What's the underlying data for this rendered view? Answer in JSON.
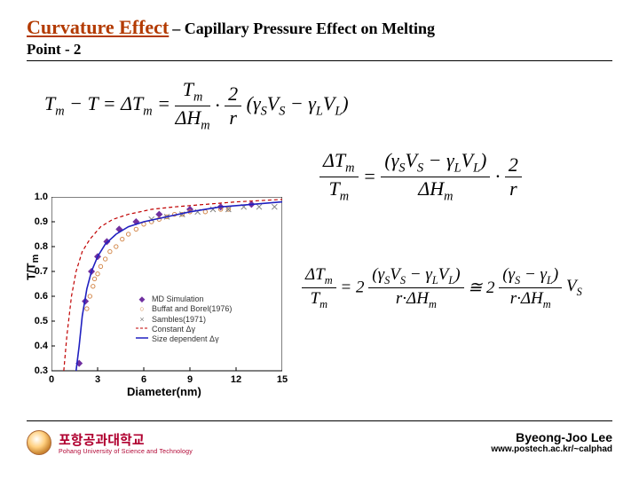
{
  "title": {
    "main": "Curvature Effect",
    "connector": " – ",
    "sub": "Capillary Pressure Effect on Melting",
    "sub2": "Point - 2"
  },
  "equations": {
    "eq1_left": "T",
    "eq1_m": "m",
    "eq1_minusT": " − T = Δ",
    "eq1_Tm2": "T",
    "eq1_eq": " = ",
    "eq1_num": "T",
    "eq1_den_dH": "ΔH",
    "eq1_dot": " · ",
    "eq1_2": "2",
    "eq1_r": "r",
    "eq1_paren_open": "(",
    "eq1_gS": "γ",
    "eq1_S": "S",
    "eq1_VS": "V",
    "eq1_minus": " − ",
    "eq1_gL": "γ",
    "eq1_L": "L",
    "eq1_VL": "V",
    "eq1_paren_close": ")",
    "eq2_lhs_num": "ΔT",
    "eq2_lhs_den": "T",
    "eq2_rhs1_num_open": "(",
    "eq2_rhs1_num_close": ")",
    "eq2_rhs1_den": "ΔH",
    "eq3_prefix": "= 2",
    "eq3_approx": " ≅ 2",
    "eq3_rden": "r·ΔH"
  },
  "chart": {
    "type": "scatter+line",
    "xlabel": "Diameter(nm)",
    "ylabel": "T/Tₘ",
    "xlim": [
      0,
      15
    ],
    "ylim": [
      0.3,
      1.0
    ],
    "xticks": [
      0,
      3,
      6,
      9,
      12,
      15
    ],
    "yticks": [
      0.3,
      0.4,
      0.5,
      0.6,
      0.7,
      0.8,
      0.9,
      1.0
    ],
    "ytick_labels": [
      "0.3",
      "0.4",
      "0.5",
      "0.6",
      "0.7",
      "0.8",
      "0.9",
      "1.0"
    ],
    "background_color": "#ffffff",
    "axis_color": "#000000",
    "series": [
      {
        "name": "MD Simulation",
        "type": "marker",
        "marker": "diamond",
        "color": "#7030a0",
        "points": [
          [
            1.8,
            0.33
          ],
          [
            2.2,
            0.58
          ],
          [
            2.6,
            0.7
          ],
          [
            3.0,
            0.76
          ],
          [
            3.6,
            0.82
          ],
          [
            4.4,
            0.87
          ],
          [
            5.5,
            0.9
          ],
          [
            7.0,
            0.93
          ],
          [
            9.0,
            0.95
          ],
          [
            11.0,
            0.96
          ],
          [
            13.0,
            0.97
          ]
        ]
      },
      {
        "name": "Buffat and Borel(1976)",
        "type": "marker",
        "marker": "open-circle",
        "color": "#d08040",
        "points": [
          [
            2.3,
            0.55
          ],
          [
            2.5,
            0.6
          ],
          [
            2.7,
            0.64
          ],
          [
            2.8,
            0.67
          ],
          [
            3.0,
            0.69
          ],
          [
            3.2,
            0.72
          ],
          [
            3.5,
            0.75
          ],
          [
            3.8,
            0.78
          ],
          [
            4.2,
            0.8
          ],
          [
            4.6,
            0.83
          ],
          [
            5.0,
            0.85
          ],
          [
            5.5,
            0.87
          ],
          [
            6.0,
            0.89
          ],
          [
            6.5,
            0.9
          ],
          [
            7.0,
            0.91
          ],
          [
            7.5,
            0.92
          ],
          [
            8.0,
            0.93
          ],
          [
            8.5,
            0.93
          ],
          [
            9.0,
            0.94
          ],
          [
            10.0,
            0.94
          ],
          [
            11.0,
            0.95
          ],
          [
            11.5,
            0.95
          ]
        ]
      },
      {
        "name": "Sambles(1971)",
        "type": "marker",
        "marker": "x",
        "color": "#808080",
        "points": [
          [
            6.5,
            0.91
          ],
          [
            7.5,
            0.92
          ],
          [
            8.5,
            0.93
          ],
          [
            9.5,
            0.94
          ],
          [
            10.5,
            0.95
          ],
          [
            11.5,
            0.95
          ],
          [
            12.5,
            0.96
          ],
          [
            13.5,
            0.96
          ],
          [
            14.5,
            0.96
          ]
        ]
      },
      {
        "name": "Constant Δγ",
        "type": "line",
        "dash": "4 3",
        "color": "#c00000",
        "width": 1.2,
        "points": [
          [
            0.8,
            0.3
          ],
          [
            1.0,
            0.44
          ],
          [
            1.3,
            0.6
          ],
          [
            1.6,
            0.7
          ],
          [
            2.0,
            0.78
          ],
          [
            2.5,
            0.83
          ],
          [
            3.2,
            0.88
          ],
          [
            4.0,
            0.91
          ],
          [
            5.0,
            0.93
          ],
          [
            6.5,
            0.95
          ],
          [
            8.0,
            0.96
          ],
          [
            10.0,
            0.97
          ],
          [
            12.0,
            0.98
          ],
          [
            15.0,
            0.99
          ]
        ]
      },
      {
        "name": "Size dependent Δγ",
        "type": "line",
        "dash": "none",
        "color": "#2020c0",
        "width": 1.6,
        "points": [
          [
            1.6,
            0.3
          ],
          [
            1.8,
            0.4
          ],
          [
            2.0,
            0.52
          ],
          [
            2.3,
            0.63
          ],
          [
            2.6,
            0.7
          ],
          [
            3.0,
            0.76
          ],
          [
            3.5,
            0.81
          ],
          [
            4.2,
            0.85
          ],
          [
            5.0,
            0.88
          ],
          [
            6.0,
            0.9
          ],
          [
            7.5,
            0.92
          ],
          [
            9.0,
            0.94
          ],
          [
            11.0,
            0.96
          ],
          [
            13.0,
            0.97
          ],
          [
            15.0,
            0.98
          ]
        ]
      }
    ],
    "legend_pos": "inside-lower-right",
    "legend_fontsize": 9,
    "axis_fontsize": 11,
    "label_fontsize": 13
  },
  "footer": {
    "univ_kr": "포항공과대학교",
    "univ_en": "Pohang University of Science and Technology",
    "author": "Byeong-Joo Lee",
    "url": "www.postech.ac.kr/~calphad"
  }
}
